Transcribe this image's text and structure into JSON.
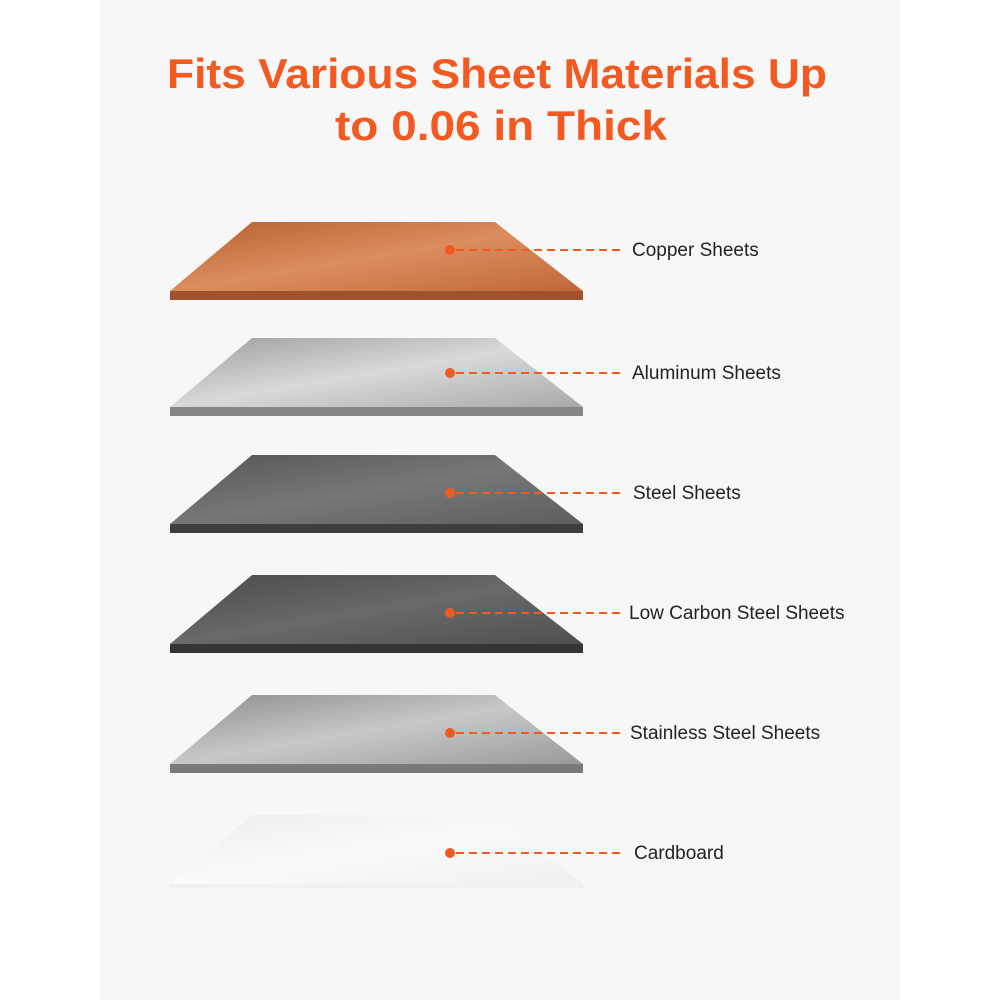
{
  "header": {
    "title_lines": [
      "Fits Various Sheet Materials Up",
      "to 0.06 in Thick"
    ]
  },
  "materials": [
    {
      "label": "Copper Sheets"
    },
    {
      "label": "Aluminum Sheets"
    },
    {
      "label": "Steel Sheets"
    },
    {
      "label": "Low Carbon Steel Sheets"
    },
    {
      "label": "Stainless Steel Sheets"
    },
    {
      "label": "Cardboard"
    }
  ]
}
